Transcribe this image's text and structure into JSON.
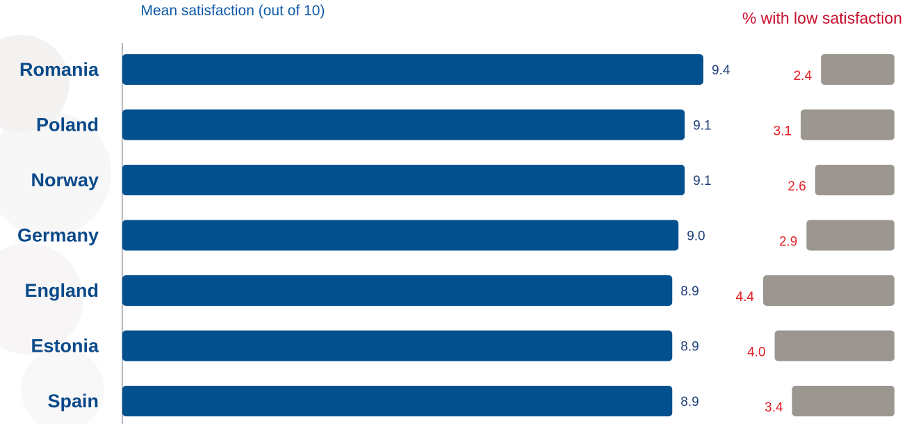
{
  "chart_data": [
    {
      "type": "bar",
      "orientation": "horizontal",
      "title": "Mean satisfaction (out of 10)",
      "categories": [
        "Romania",
        "Poland",
        "Norway",
        "Germany",
        "England",
        "Estonia",
        "Spain"
      ],
      "values": [
        9.4,
        9.1,
        9.1,
        9.0,
        8.9,
        8.9,
        8.9
      ],
      "value_labels": [
        "9.4",
        "9.1",
        "9.1",
        "9.0",
        "8.9",
        "8.9",
        "8.9"
      ],
      "grid": false,
      "legend": "none"
    },
    {
      "type": "bar",
      "orientation": "horizontal",
      "direction": "right-to-left",
      "title": "% with low satisfaction",
      "categories": [
        "Romania",
        "Poland",
        "Norway",
        "Germany",
        "England",
        "Estonia",
        "Spain"
      ],
      "values": [
        2.4,
        3.1,
        2.6,
        2.9,
        4.4,
        4.0,
        3.4
      ],
      "value_labels": [
        "2.4",
        "3.1",
        "2.6",
        "2.9",
        "4.4",
        "4.0",
        "3.4"
      ],
      "grid": false,
      "legend": "none"
    }
  ],
  "colors": {
    "mean_bar": "#03508f",
    "mean_label": "#1f3f7a",
    "country_label": "#0b4a8a",
    "low_bar": "#9b9790",
    "low_label": "#e31e24",
    "low_title": "#c8102e",
    "mean_title": "#0e5aa7",
    "axis": "#8a8a9a"
  }
}
